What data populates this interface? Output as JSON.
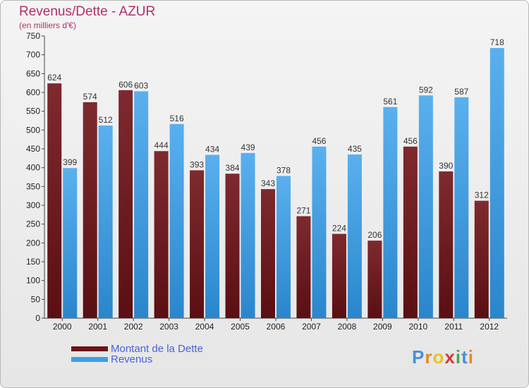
{
  "title": "Revenus/Dette - AZUR",
  "subtitle": "(en milliers d'€)",
  "chart_data": {
    "type": "bar",
    "categories": [
      "2000",
      "2001",
      "2002",
      "2003",
      "2004",
      "2005",
      "2006",
      "2007",
      "2008",
      "2009",
      "2010",
      "2011",
      "2012"
    ],
    "series": [
      {
        "name": "Montant de la Dette",
        "color": "#7a1a1f",
        "values": [
          624,
          574,
          606,
          444,
          393,
          384,
          343,
          271,
          224,
          206,
          456,
          390,
          312
        ]
      },
      {
        "name": "Revenus",
        "color": "#3d9fe3",
        "values": [
          399,
          512,
          603,
          516,
          434,
          439,
          378,
          456,
          435,
          561,
          592,
          587,
          718
        ]
      }
    ],
    "ylim": [
      0,
      750
    ],
    "yticks": [
      0,
      50,
      100,
      150,
      200,
      250,
      300,
      350,
      400,
      450,
      500,
      550,
      600,
      650,
      700,
      750
    ],
    "grid": false,
    "legend_position": "bottom-left"
  },
  "legend": [
    {
      "label": "Montant de la Dette",
      "color": "#7a1a1f"
    },
    {
      "label": "Revenus",
      "color": "#3d9fe3"
    }
  ],
  "logo": {
    "text": "Proxiti",
    "letters": [
      {
        "ch": "P",
        "color": "#4a8fd8"
      },
      {
        "ch": "r",
        "color": "#e08a2a"
      },
      {
        "ch": "o",
        "color": "#e8c22a"
      },
      {
        "ch": "x",
        "color": "#d23a3a"
      },
      {
        "ch": "i",
        "color": "#4aa84a"
      },
      {
        "ch": "t",
        "color": "#4a8fd8"
      },
      {
        "ch": "i",
        "color": "#e08a2a"
      }
    ]
  }
}
